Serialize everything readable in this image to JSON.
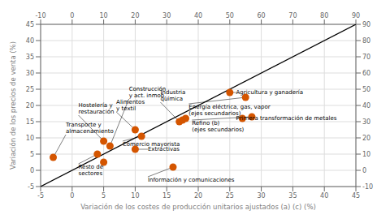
{
  "chart_data": {
    "type": "scatter",
    "xlabel": "Variación de los costes de producción unitarios ajustados (a) (c) (%)",
    "ylabel": "Variación de los precios de venta (%)",
    "xlim": [
      -5,
      45
    ],
    "ylim": [
      -5,
      45
    ],
    "xticks": [
      -5,
      0,
      5,
      10,
      15,
      20,
      25,
      30,
      35,
      40,
      45
    ],
    "yticks": [
      -5,
      0,
      5,
      10,
      15,
      20,
      25,
      30,
      35,
      40,
      45
    ],
    "x2lim": [
      -10,
      90
    ],
    "x2ticks": [
      -10,
      0,
      10,
      20,
      30,
      40,
      50,
      60,
      70,
      80,
      90
    ],
    "y2lim": [
      -10,
      90
    ],
    "y2ticks": [
      -10,
      0,
      10,
      20,
      30,
      40,
      50,
      60,
      70,
      80,
      90
    ],
    "grid": true,
    "series": [
      {
        "type": "line",
        "color": "#000000",
        "axis": "y2",
        "x": [
          -10,
          90
        ],
        "values": [
          -10,
          90
        ]
      },
      {
        "type": "scatter",
        "color": "#d45500",
        "x": [
          -3,
          4,
          5,
          5,
          6,
          10,
          11,
          10,
          16,
          17,
          17.5,
          18,
          25,
          27
        ],
        "values": [
          4,
          5,
          9,
          2.5,
          7.5,
          12.5,
          10.5,
          6.5,
          1,
          15,
          15.5,
          16,
          24,
          16
        ]
      },
      {
        "type": "scatter",
        "color": "#d45500",
        "axis": "y2",
        "x": [
          55,
          57
        ],
        "values": [
          45,
          33
        ]
      }
    ],
    "annotations": [
      {
        "label": "Transporte y\nalmacenamiento",
        "x": -3,
        "y": 4,
        "tx": -1,
        "ty": 11
      },
      {
        "label": "Resto de\nsectores",
        "x": 4,
        "y": 5,
        "tx": 1,
        "ty": 2
      },
      {
        "label": "Hostelería y\nrestauración",
        "x": 5,
        "y": 9,
        "tx": 1,
        "ty": 17
      },
      {
        "label": "Construcción\ny act. inmob.",
        "x": 6,
        "y": 7.5,
        "tx": 9,
        "ty": 22
      },
      {
        "label": "Alimentos\ny textil",
        "x": 10,
        "y": 12.5,
        "tx": 7,
        "ty": 18
      },
      {
        "label": "Comercio mayorista",
        "x": 11,
        "y": 10.5,
        "tx": 8,
        "ty": 9
      },
      {
        "label": "Extractivas",
        "x": 10,
        "y": 6.5,
        "tx": 12,
        "ty": 6.5
      },
      {
        "label": "Información y comunicaciones",
        "x": 16,
        "y": 1,
        "tx": 12,
        "ty": -2
      },
      {
        "label": "Industria\nquímica",
        "x": 17,
        "y": 15,
        "tx": 14,
        "ty": 21
      },
      {
        "label": "Agricultura y ganadería",
        "x": 25,
        "y": 24,
        "tx": 26,
        "ty": 24
      },
      {
        "label": "Primera transformación de metales",
        "x": 27,
        "y": 16,
        "tx": 26,
        "ty": 16
      },
      {
        "label": "Energía eléctrica, gas, vapor\n(ejes secundarios)",
        "x": 55,
        "y": 45,
        "tx": 37,
        "ty": 41,
        "axis": "y2"
      },
      {
        "label": "Refino (b)\n(ejes secundarios)",
        "x": 57,
        "y": 33,
        "tx": 38,
        "ty": 31,
        "axis": "y2"
      }
    ]
  }
}
